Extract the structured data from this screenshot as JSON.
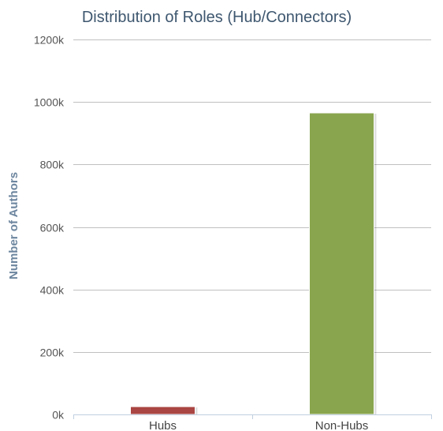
{
  "chart_data": {
    "type": "bar",
    "title": "Distribution of Roles (Hub/Connectors)",
    "xlabel": "",
    "ylabel": "Number of Authors",
    "categories": [
      "Hubs",
      "Non-Hubs"
    ],
    "values": [
      25000,
      965000
    ],
    "colors": [
      "#aa4643",
      "#89a54e"
    ],
    "ylim": [
      0,
      1200000
    ],
    "yticks": [
      0,
      200000,
      400000,
      600000,
      800000,
      1000000,
      1200000
    ],
    "ytick_labels": [
      "0k",
      "200k",
      "400k",
      "600k",
      "800k",
      "1000k",
      "1200k"
    ],
    "grid": true,
    "legend": "none"
  }
}
